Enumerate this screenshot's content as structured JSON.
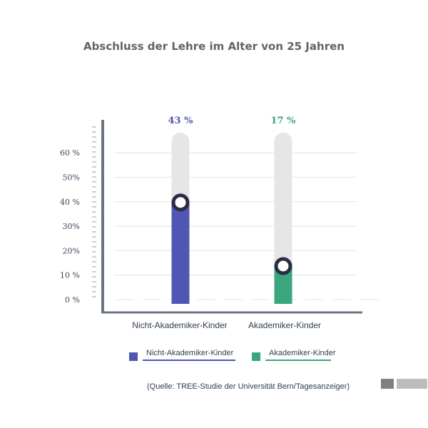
{
  "chart_data": {
    "type": "bar",
    "title": "Abschluss der Lehre im Alter von 25 Jahren",
    "categories": [
      "Nicht-Akademiker-Kinder",
      "Akademiker-Kinder"
    ],
    "values": [
      43,
      17
    ],
    "value_labels": [
      "43 %",
      "17 %"
    ],
    "colors": [
      "#5056b3",
      "#3ba67e"
    ],
    "track_color": "#e6e6e6",
    "ylim": [
      0,
      70
    ],
    "yticks": [
      {
        "value": 0,
        "label": "0 %"
      },
      {
        "value": 10,
        "label": "10 %"
      },
      {
        "value": 20,
        "label": "20%"
      },
      {
        "value": 30,
        "label": "30%"
      },
      {
        "value": 40,
        "label": "40 %"
      },
      {
        "value": 50,
        "label": "50%"
      },
      {
        "value": 60,
        "label": "60 %"
      }
    ],
    "grid": true,
    "legend": {
      "position": "bottom",
      "entries": [
        {
          "label": "Nicht-Akademiker-Kinder",
          "color": "#5056b3"
        },
        {
          "label": "Akademiker-Kinder",
          "color": "#3ba67e"
        }
      ]
    }
  },
  "source": "(Quelle: TREE-Studie der Universität Bern/Tagesanzeiger)",
  "colors": {
    "axis": "#6b7480",
    "grid": "#e4e4e4",
    "marker_ring": "#2c2b46",
    "corner_dark": "#808080",
    "corner_light": "#bdbdbd"
  }
}
